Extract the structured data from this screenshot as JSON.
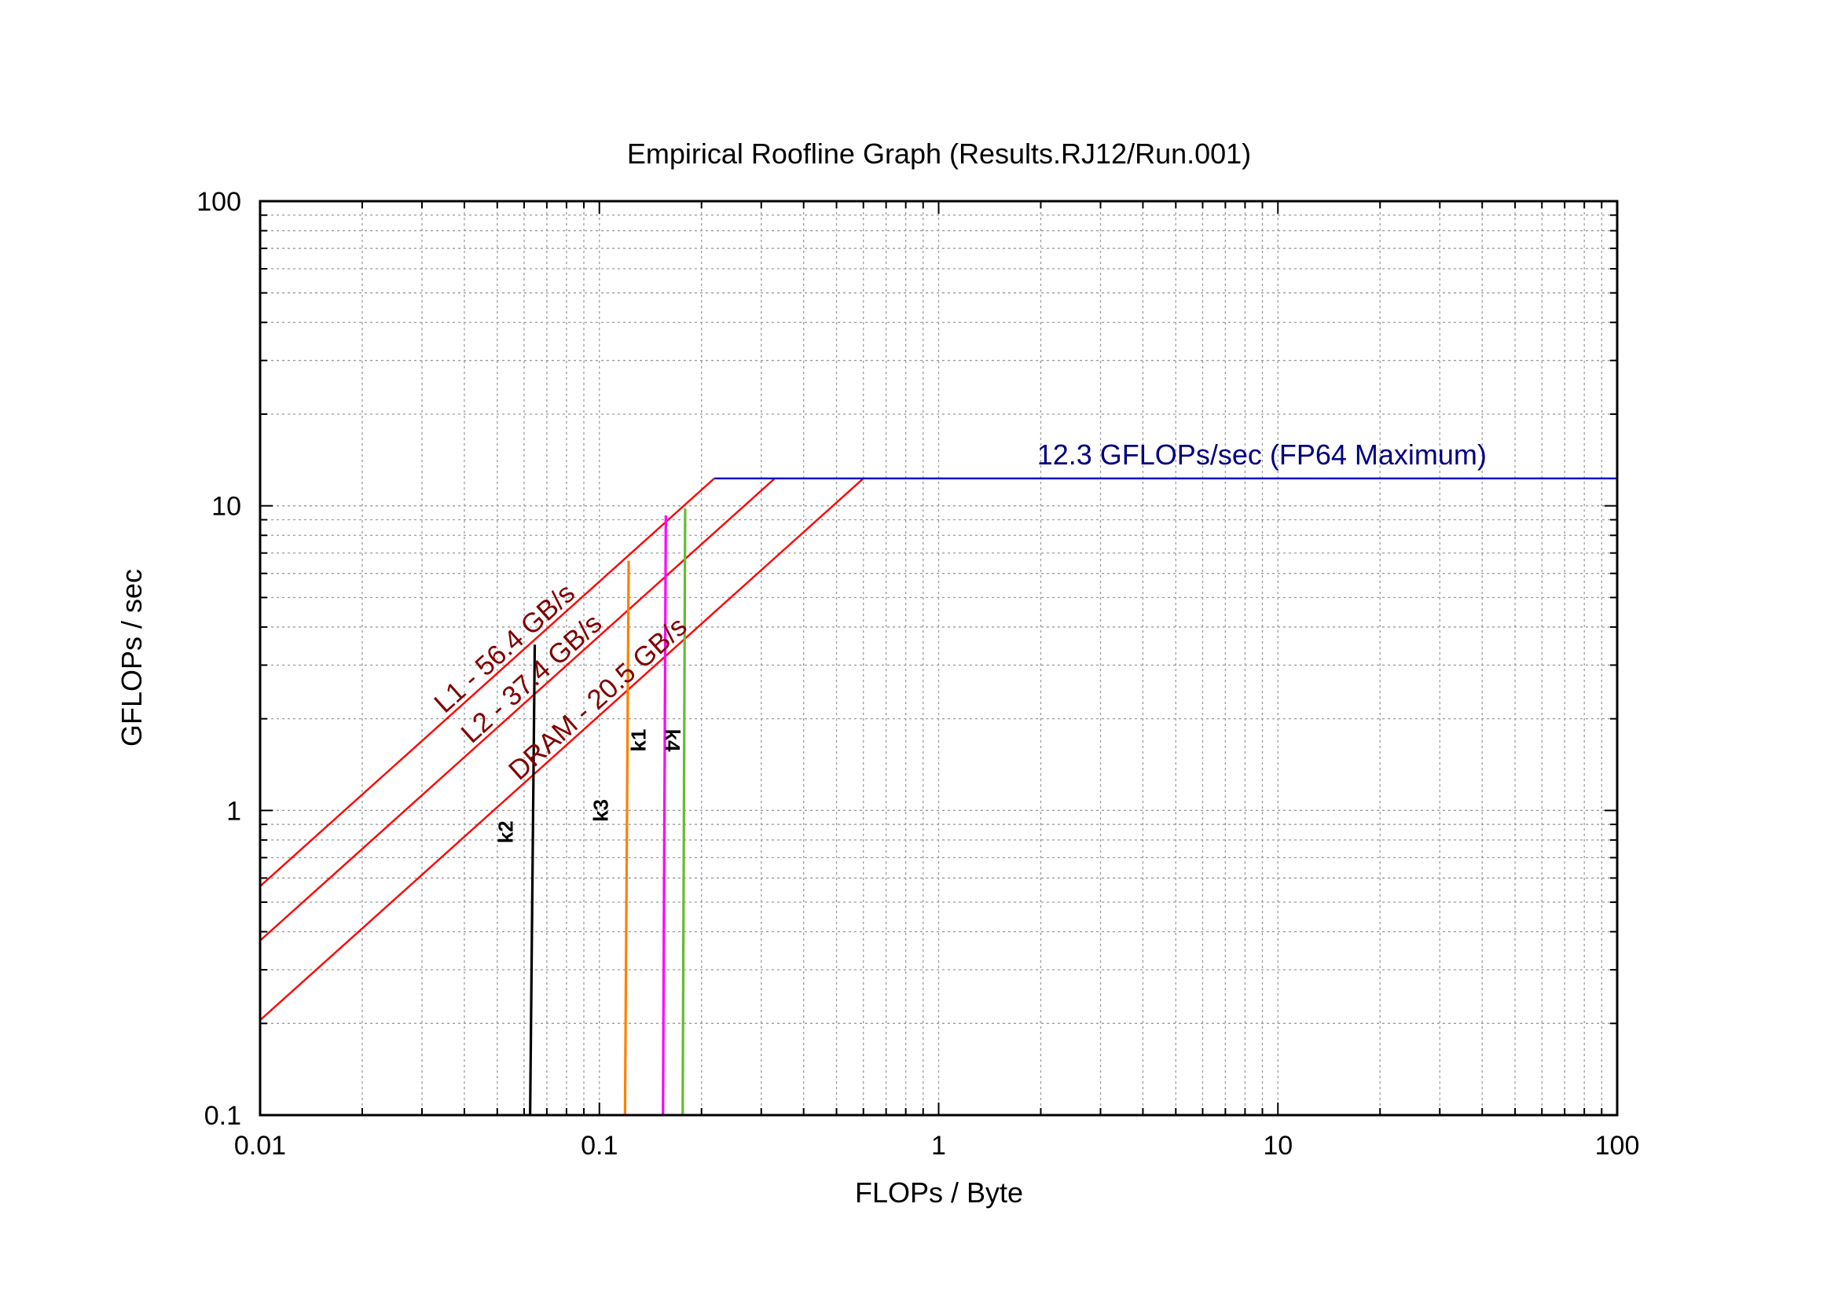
{
  "chart_data": {
    "type": "line",
    "title": "Empirical Roofline Graph (Results.RJ12/Run.001)",
    "xlabel": "FLOPs / Byte",
    "ylabel": "GFLOPs / sec",
    "xscale": "log",
    "yscale": "log",
    "xlim": [
      0.01,
      100
    ],
    "ylim": [
      0.1,
      100
    ],
    "grid": true,
    "x_ticks": [
      {
        "value": 0.01,
        "label": "0.01"
      },
      {
        "value": 0.1,
        "label": "0.1"
      },
      {
        "value": 1,
        "label": "1"
      },
      {
        "value": 10,
        "label": "10"
      },
      {
        "value": 100,
        "label": "100"
      }
    ],
    "y_ticks": [
      {
        "value": 0.1,
        "label": "0.1"
      },
      {
        "value": 1,
        "label": "1"
      },
      {
        "value": 10,
        "label": "10"
      },
      {
        "value": 100,
        "label": "100"
      }
    ],
    "ceilings": [
      {
        "label": "12.3 GFLOPs/sec (FP64 Maximum)",
        "kind": "compute",
        "gflops": 12.3,
        "x_start": 0.218,
        "x_end": 100,
        "color": "#0000cc",
        "label_color": "#000080"
      }
    ],
    "bandwidth_lines": [
      {
        "label": "L1 - 56.4 GB/s",
        "bandwidth": 56.4,
        "x_start": 0.01,
        "x_end": 0.218,
        "color": "#ff0000",
        "label_color": "#800000"
      },
      {
        "label": "L2 - 37.4 GB/s",
        "bandwidth": 37.4,
        "x_start": 0.01,
        "x_end": 0.329,
        "color": "#ff0000",
        "label_color": "#800000"
      },
      {
        "label": "DRAM - 20.5 GB/s",
        "bandwidth": 20.5,
        "x_start": 0.01,
        "x_end": 0.6,
        "color": "#ff0000",
        "label_color": "#800000"
      }
    ],
    "kernels": [
      {
        "label": "k2",
        "color": "#000000",
        "x_bottom": 0.0625,
        "x_top": 0.0645,
        "y_top": 3.5,
        "label_y": 0.85
      },
      {
        "label": "k3",
        "color": "#ff8000",
        "x_bottom": 0.119,
        "x_top": 0.122,
        "y_top": 6.6,
        "label_y": 1.0
      },
      {
        "label": "k1",
        "color": "#ff00ff",
        "x_bottom": 0.154,
        "x_top": 0.157,
        "y_top": 9.3,
        "label_y": 1.7
      },
      {
        "label": "k4",
        "color": "#66bb33",
        "x_bottom": 0.176,
        "x_top": 0.179,
        "y_top": 9.8,
        "label_y": 1.7
      }
    ]
  }
}
